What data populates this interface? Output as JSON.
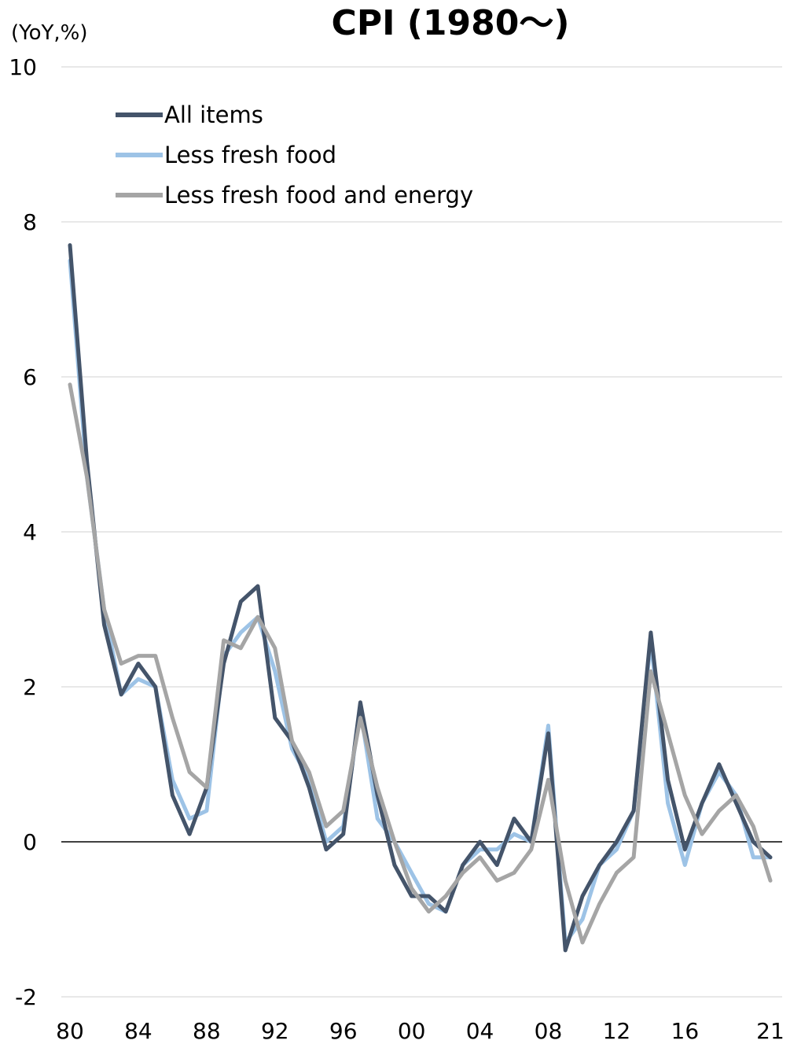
{
  "chart_data": {
    "type": "line",
    "title": "CPI (1980～)",
    "ylabel": "(YoY,%)",
    "xlabel": "",
    "ylim": [
      -2,
      10
    ],
    "yticks": [
      -2,
      0,
      2,
      4,
      6,
      8,
      10
    ],
    "ytick_labels": [
      "-2",
      "0",
      "2",
      "4",
      "6",
      "8",
      "10"
    ],
    "x": [
      1980,
      1981,
      1982,
      1983,
      1984,
      1985,
      1986,
      1987,
      1988,
      1989,
      1990,
      1991,
      1992,
      1993,
      1994,
      1995,
      1996,
      1997,
      1998,
      1999,
      2000,
      2001,
      2002,
      2003,
      2004,
      2005,
      2006,
      2007,
      2008,
      2009,
      2010,
      2011,
      2012,
      2013,
      2014,
      2015,
      2016,
      2017,
      2018,
      2019,
      2020,
      2021
    ],
    "xticks": [
      1980,
      1984,
      1988,
      1992,
      1996,
      2000,
      2004,
      2008,
      2012,
      2016,
      2021
    ],
    "xtick_labels": [
      "80",
      "84",
      "88",
      "92",
      "96",
      "00",
      "04",
      "08",
      "12",
      "16",
      "21"
    ],
    "grid": "horizontal",
    "legend_position": "top-left",
    "series": [
      {
        "name": "All items",
        "color": "#44546a",
        "values": [
          7.7,
          4.9,
          2.8,
          1.9,
          2.3,
          2.0,
          0.6,
          0.1,
          0.7,
          2.3,
          3.1,
          3.3,
          1.6,
          1.3,
          0.7,
          -0.1,
          0.1,
          1.8,
          0.6,
          -0.3,
          -0.7,
          -0.7,
          -0.9,
          -0.3,
          0.0,
          -0.3,
          0.3,
          0.0,
          1.4,
          -1.4,
          -0.7,
          -0.3,
          0.0,
          0.4,
          2.7,
          0.8,
          -0.1,
          0.5,
          1.0,
          0.5,
          0.0,
          -0.2
        ]
      },
      {
        "name": "Less fresh food",
        "color": "#9dc3e6",
        "values": [
          7.5,
          4.7,
          3.0,
          1.9,
          2.1,
          2.0,
          0.8,
          0.3,
          0.4,
          2.4,
          2.7,
          2.9,
          2.2,
          1.2,
          0.8,
          0.0,
          0.2,
          1.7,
          0.3,
          0.0,
          -0.4,
          -0.8,
          -0.9,
          -0.3,
          -0.1,
          -0.1,
          0.1,
          0.0,
          1.5,
          -1.3,
          -1.0,
          -0.3,
          -0.1,
          0.4,
          2.6,
          0.5,
          -0.3,
          0.5,
          0.9,
          0.6,
          -0.2,
          -0.2
        ]
      },
      {
        "name": "Less fresh food and energy",
        "color": "#a5a5a5",
        "values": [
          5.9,
          4.7,
          3.0,
          2.3,
          2.4,
          2.4,
          1.6,
          0.9,
          0.7,
          2.6,
          2.5,
          2.9,
          2.5,
          1.3,
          0.9,
          0.2,
          0.4,
          1.6,
          0.7,
          0.0,
          -0.6,
          -0.9,
          -0.7,
          -0.4,
          -0.2,
          -0.5,
          -0.4,
          -0.1,
          0.8,
          -0.5,
          -1.3,
          -0.8,
          -0.4,
          -0.2,
          2.2,
          1.4,
          0.6,
          0.1,
          0.4,
          0.6,
          0.2,
          -0.5
        ]
      }
    ]
  }
}
